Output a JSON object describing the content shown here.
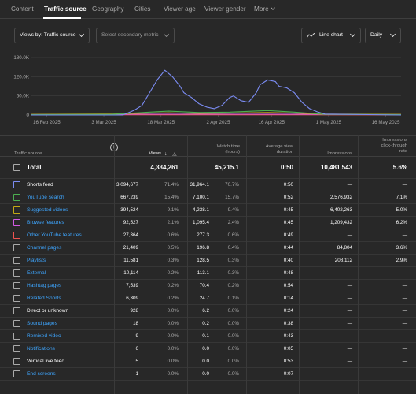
{
  "tabs": [
    {
      "label": "Content",
      "x": 0
    },
    {
      "label": "Traffic source",
      "x": 0,
      "active": true
    },
    {
      "label": "Geography",
      "x": 0
    },
    {
      "label": "Cities",
      "x": 0
    },
    {
      "label": "Viewer age",
      "x": 0
    },
    {
      "label": "Viewer gender",
      "x": 0
    },
    {
      "label": "More",
      "x": 0
    }
  ],
  "controls": {
    "primary_metric": "Views by: Traffic source",
    "secondary_metric_placeholder": "Select secondary metric",
    "chart_type": "Line chart",
    "granularity": "Daily"
  },
  "chart_data": {
    "type": "line",
    "y_ticks": [
      "180.0K",
      "120.0K",
      "60.0K",
      "0"
    ],
    "ylim": [
      0,
      180000
    ],
    "x_tick_labels": [
      "16 Feb 2025",
      "3 Mar 2025",
      "18 Mar 2025",
      "2 Apr 2025",
      "16 Apr 2025",
      "1 May 2025",
      "16 May 2025"
    ],
    "x_range": [
      "2025-02-12",
      "2025-05-20"
    ],
    "grid": true,
    "series": [
      {
        "name": "Shorts feed",
        "color": "#7b8cf3",
        "x": [
          "2025-02-12",
          "2025-03-08",
          "2025-03-11",
          "2025-03-13",
          "2025-03-15",
          "2025-03-17",
          "2025-03-19",
          "2025-03-21",
          "2025-03-23",
          "2025-03-24",
          "2025-03-26",
          "2025-03-28",
          "2025-03-30",
          "2025-04-01",
          "2025-04-03",
          "2025-04-05",
          "2025-04-06",
          "2025-04-08",
          "2025-04-10",
          "2025-04-12",
          "2025-04-13",
          "2025-04-15",
          "2025-04-17",
          "2025-04-18",
          "2025-04-20",
          "2025-04-22",
          "2025-04-24",
          "2025-04-26",
          "2025-04-28",
          "2025-04-30",
          "2025-05-20"
        ],
        "y": [
          0,
          0,
          15000,
          30000,
          70000,
          110000,
          140000,
          120000,
          90000,
          70000,
          55000,
          35000,
          25000,
          20000,
          30000,
          55000,
          60000,
          45000,
          40000,
          70000,
          95000,
          110000,
          105000,
          90000,
          85000,
          70000,
          40000,
          20000,
          10000,
          3000,
          0
        ]
      },
      {
        "name": "YouTube search",
        "color": "#4caf50",
        "x": [
          "2025-02-12",
          "2025-03-05",
          "2025-03-15",
          "2025-03-20",
          "2025-03-28",
          "2025-04-05",
          "2025-04-15",
          "2025-04-22",
          "2025-04-30",
          "2025-05-20"
        ],
        "y": [
          1000,
          2000,
          9000,
          12000,
          8000,
          9000,
          14000,
          9000,
          2000,
          1000
        ]
      },
      {
        "name": "Suggested videos",
        "color": "#c3a815",
        "x": [
          "2025-02-12",
          "2025-03-05",
          "2025-03-15",
          "2025-03-20",
          "2025-03-28",
          "2025-04-05",
          "2025-04-15",
          "2025-04-22",
          "2025-04-30",
          "2025-05-20"
        ],
        "y": [
          2000,
          3000,
          6000,
          7000,
          5000,
          6000,
          8000,
          6000,
          3000,
          2000
        ]
      },
      {
        "name": "Browse features",
        "color": "#d35be3",
        "x": [
          "2025-02-12",
          "2025-03-15",
          "2025-04-15",
          "2025-05-20"
        ],
        "y": [
          1500,
          2500,
          2500,
          1500
        ]
      },
      {
        "name": "Other YouTube features",
        "color": "#ef5350",
        "x": [
          "2025-02-12",
          "2025-03-15",
          "2025-04-15",
          "2025-05-20"
        ],
        "y": [
          500,
          700,
          700,
          500
        ]
      }
    ]
  },
  "table": {
    "headers": {
      "source": "Traffic source",
      "views": "Views",
      "watch_time": [
        "Watch time",
        "(hours)"
      ],
      "avd": [
        "Average view",
        "duration"
      ],
      "impressions": "Impressions",
      "ctr": [
        "Impressions",
        "click-through",
        "rate"
      ]
    },
    "total": {
      "label": "Total",
      "views": "4,334,261",
      "watch": "45,215.1",
      "avd": "0:50",
      "impr": "10,481,543",
      "ctr": "5.6%"
    },
    "rows": [
      {
        "label": "Shorts feed",
        "link": false,
        "color": "#7b8cf3",
        "views": "3,094,677",
        "vpct": "71.4%",
        "watch": "31,964.1",
        "wpct": "70.7%",
        "avd": "0:50",
        "impr": "—",
        "ctr": "—"
      },
      {
        "label": "YouTube search",
        "link": true,
        "color": "#4caf50",
        "views": "667,239",
        "vpct": "15.4%",
        "watch": "7,100.1",
        "wpct": "15.7%",
        "avd": "0:52",
        "impr": "2,576,932",
        "ctr": "7.1%"
      },
      {
        "label": "Suggested videos",
        "link": true,
        "color": "#c3a815",
        "views": "394,524",
        "vpct": "9.1%",
        "watch": "4,238.1",
        "wpct": "9.4%",
        "avd": "0:45",
        "impr": "6,402,263",
        "ctr": "5.0%"
      },
      {
        "label": "Browse features",
        "link": true,
        "color": "#d35be3",
        "views": "92,527",
        "vpct": "2.1%",
        "watch": "1,095.4",
        "wpct": "2.4%",
        "avd": "0:45",
        "impr": "1,209,432",
        "ctr": "6.2%"
      },
      {
        "label": "Other YouTube features",
        "link": true,
        "color": "#ef5350",
        "views": "27,364",
        "vpct": "0.6%",
        "watch": "277.3",
        "wpct": "0.6%",
        "avd": "0:49",
        "impr": "—",
        "ctr": "—"
      },
      {
        "label": "Channel pages",
        "link": true,
        "color": "",
        "views": "21,409",
        "vpct": "0.5%",
        "watch": "196.8",
        "wpct": "0.4%",
        "avd": "0:44",
        "impr": "84,804",
        "ctr": "3.6%"
      },
      {
        "label": "Playlists",
        "link": true,
        "color": "",
        "views": "11,581",
        "vpct": "0.3%",
        "watch": "128.5",
        "wpct": "0.3%",
        "avd": "0:40",
        "impr": "208,112",
        "ctr": "2.9%"
      },
      {
        "label": "External",
        "link": true,
        "color": "",
        "views": "10,114",
        "vpct": "0.2%",
        "watch": "113.1",
        "wpct": "0.3%",
        "avd": "0:48",
        "impr": "—",
        "ctr": "—"
      },
      {
        "label": "Hashtag pages",
        "link": true,
        "color": "",
        "views": "7,539",
        "vpct": "0.2%",
        "watch": "70.4",
        "wpct": "0.2%",
        "avd": "0:54",
        "impr": "—",
        "ctr": "—"
      },
      {
        "label": "Related Shorts",
        "link": true,
        "color": "",
        "views": "6,309",
        "vpct": "0.2%",
        "watch": "24.7",
        "wpct": "0.1%",
        "avd": "0:14",
        "impr": "—",
        "ctr": "—"
      },
      {
        "label": "Direct or unknown",
        "link": false,
        "color": "",
        "views": "928",
        "vpct": "0.0%",
        "watch": "6.2",
        "wpct": "0.0%",
        "avd": "0:24",
        "impr": "—",
        "ctr": "—"
      },
      {
        "label": "Sound pages",
        "link": true,
        "color": "",
        "views": "18",
        "vpct": "0.0%",
        "watch": "0.2",
        "wpct": "0.0%",
        "avd": "0:38",
        "impr": "—",
        "ctr": "—"
      },
      {
        "label": "Remixed video",
        "link": true,
        "color": "",
        "views": "9",
        "vpct": "0.0%",
        "watch": "0.1",
        "wpct": "0.0%",
        "avd": "0:43",
        "impr": "—",
        "ctr": "—"
      },
      {
        "label": "Notifications",
        "link": true,
        "color": "",
        "views": "6",
        "vpct": "0.0%",
        "watch": "0.0",
        "wpct": "0.0%",
        "avd": "0:05",
        "impr": "—",
        "ctr": "—"
      },
      {
        "label": "Vertical live feed",
        "link": false,
        "color": "",
        "views": "5",
        "vpct": "0.0%",
        "watch": "0.0",
        "wpct": "0.0%",
        "avd": "0:53",
        "impr": "—",
        "ctr": "—"
      },
      {
        "label": "End screens",
        "link": true,
        "color": "",
        "views": "1",
        "vpct": "0.0%",
        "watch": "0.0",
        "wpct": "0.0%",
        "avd": "0:07",
        "impr": "—",
        "ctr": "—"
      }
    ]
  }
}
